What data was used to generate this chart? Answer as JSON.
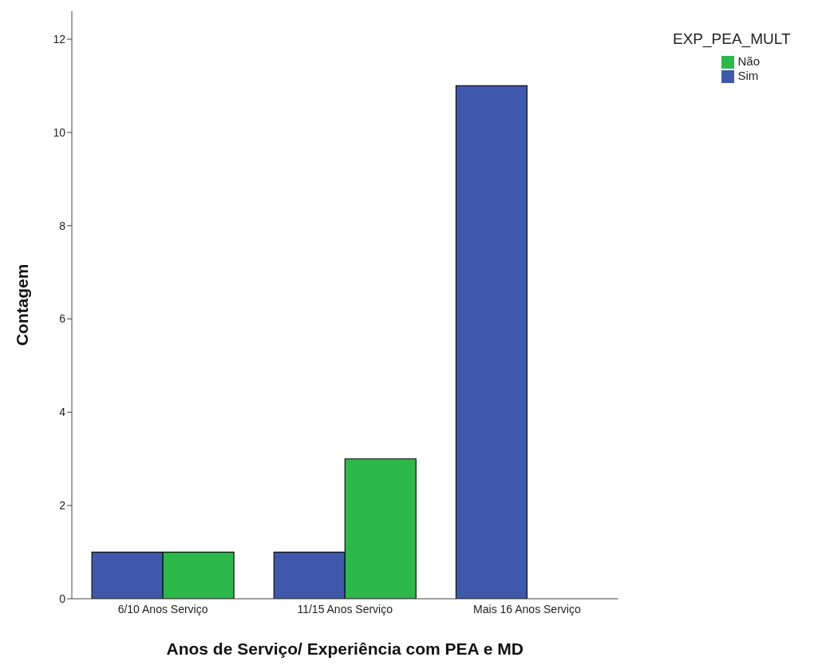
{
  "chart_data": {
    "type": "bar",
    "xlabel": "Anos de Serviço/ Experiência com PEA e MD",
    "ylabel": "Contagem",
    "legend_title": "EXP_PEA_MULT",
    "categories": [
      "6/10 Anos Serviço",
      "11/15 Anos Serviço",
      "Mais 16 Anos Serviço"
    ],
    "series": [
      {
        "name": "Sim",
        "color": "#3e58ac",
        "values": [
          1,
          1,
          11
        ]
      },
      {
        "name": "Não",
        "color": "#2db84a",
        "values": [
          1,
          3,
          0
        ]
      }
    ],
    "ylim": [
      0,
      12.6
    ],
    "yticks": [
      0,
      2,
      4,
      6,
      8,
      10,
      12
    ],
    "grid": false,
    "legend": "right"
  }
}
